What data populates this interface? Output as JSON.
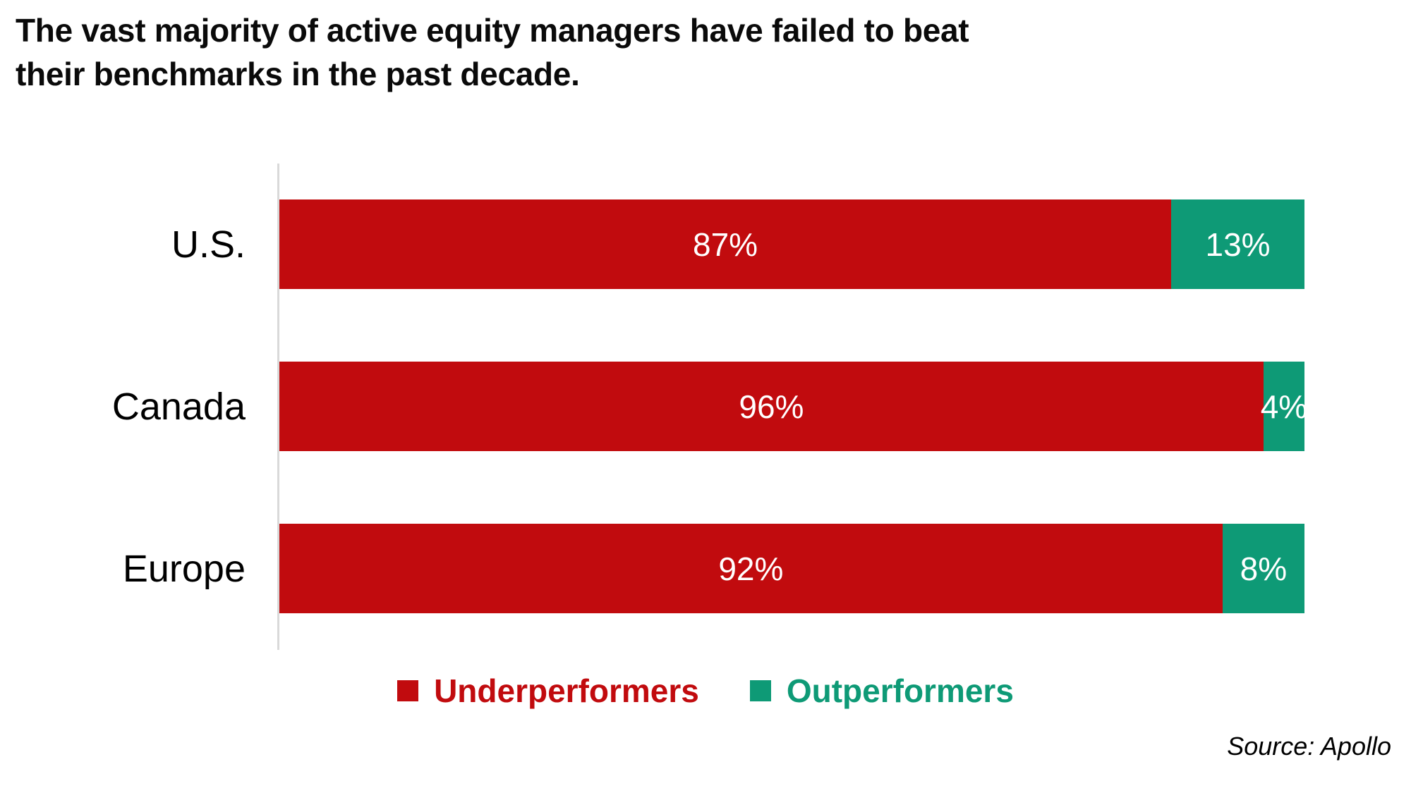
{
  "title": "The vast majority of active equity managers have failed to beat their benchmarks in the past decade.",
  "source_label": "Source: Apollo",
  "legend": [
    {
      "label": "Underperformers",
      "color": "#C10B0E"
    },
    {
      "label": "Outperformers",
      "color": "#0E9A76"
    }
  ],
  "colors": {
    "underperformers_red": "#C10B0E",
    "outperformers_teal": "#0E9A76",
    "axis_gray": "#D9D9D9",
    "value_label_white": "#FFFFFF",
    "text_black": "#0A0A0A"
  },
  "chart_data": {
    "type": "bar",
    "orientation": "horizontal",
    "stacked": true,
    "title": "The vast majority of active equity managers have failed to beat their benchmarks in the past decade.",
    "categories": [
      "U.S.",
      "Canada",
      "Europe"
    ],
    "series": [
      {
        "name": "Underperformers",
        "color": "#C10B0E",
        "values": [
          87,
          96,
          92
        ]
      },
      {
        "name": "Outperformers",
        "color": "#0E9A76",
        "values": [
          13,
          4,
          8
        ]
      }
    ],
    "value_suffix": "%",
    "xlim": [
      0,
      100
    ],
    "grid": false,
    "legend_position": "bottom",
    "source": "Source: Apollo"
  }
}
